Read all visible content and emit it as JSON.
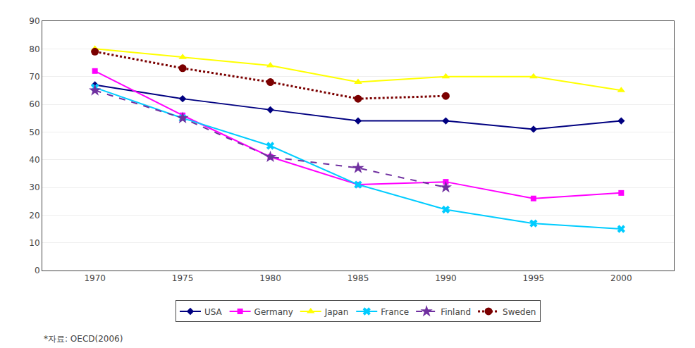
{
  "chart_data": {
    "type": "line",
    "x": [
      1970,
      1975,
      1980,
      1985,
      1990,
      1995,
      2000
    ],
    "series": [
      {
        "name": "USA",
        "color": "#000080",
        "marker": "diamond",
        "line_style": "solid",
        "values": [
          67,
          62,
          58,
          54,
          54,
          51,
          54
        ]
      },
      {
        "name": "Germany",
        "color": "#FF00FF",
        "marker": "square",
        "line_style": "solid",
        "values": [
          72,
          56,
          41,
          31,
          32,
          26,
          28
        ]
      },
      {
        "name": "Japan",
        "color": "#FFFF00",
        "marker": "triangle-up",
        "line_style": "solid",
        "values": [
          80,
          77,
          74,
          68,
          70,
          70,
          65
        ]
      },
      {
        "name": "France",
        "color": "#00CCFF",
        "marker": "x",
        "line_style": "solid",
        "values": [
          66,
          55,
          45,
          31,
          22,
          17,
          15
        ]
      },
      {
        "name": "Finland",
        "color": "#7030A0",
        "marker": "star",
        "line_style": "dashed",
        "values": [
          65,
          55,
          41,
          37,
          30,
          null,
          null
        ]
      },
      {
        "name": "Sweden",
        "color": "#7B0000",
        "marker": "circle",
        "line_style": "dotted",
        "values": [
          79,
          73,
          68,
          62,
          63,
          null,
          null
        ]
      }
    ],
    "xlim": [
      1967,
      2003
    ],
    "xticks": [
      1970,
      1975,
      1980,
      1985,
      1990,
      1995,
      2000
    ],
    "ylim": [
      0,
      90
    ],
    "yticks": [
      0,
      10,
      20,
      30,
      40,
      50,
      60,
      70,
      80,
      90
    ],
    "grid": true,
    "legend": "bottom",
    "annotations": [
      {
        "text": "*자료: OECD(2006)"
      }
    ]
  }
}
